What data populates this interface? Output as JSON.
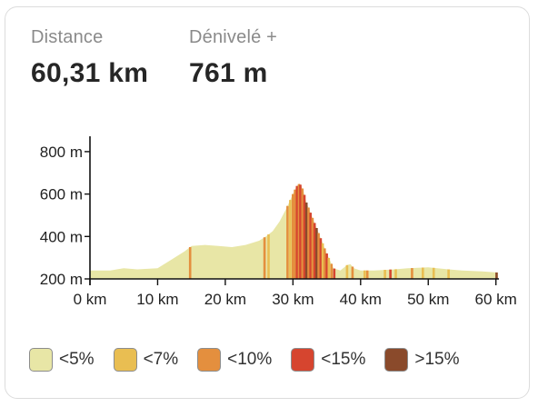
{
  "stats": {
    "distance": {
      "label": "Distance",
      "value": "60,31 km"
    },
    "elevation": {
      "label": "Dénivelé +",
      "value": "761 m"
    }
  },
  "chart_data": {
    "type": "area",
    "title": "",
    "xlabel": "",
    "ylabel": "",
    "xlim": [
      0,
      60.31
    ],
    "ylim": [
      160,
      860
    ],
    "y_ticks": [
      {
        "value": 800,
        "label": "800 m"
      },
      {
        "value": 600,
        "label": "600 m"
      },
      {
        "value": 400,
        "label": "400 m"
      },
      {
        "value": 200,
        "label": "200 m"
      }
    ],
    "x_ticks": [
      {
        "value": 0,
        "label": "0 km"
      },
      {
        "value": 10,
        "label": "10 km"
      },
      {
        "value": 20,
        "label": "20 km"
      },
      {
        "value": 30,
        "label": "30 km"
      },
      {
        "value": 40,
        "label": "40 km"
      },
      {
        "value": 50,
        "label": "50 km"
      },
      {
        "value": 60,
        "label": "60 km"
      }
    ],
    "profile": {
      "x": [
        0,
        3,
        5,
        7,
        10,
        12,
        14,
        15,
        17,
        19,
        21,
        23,
        25,
        26,
        27,
        28,
        29,
        30,
        30.5,
        31,
        31.5,
        32,
        33,
        34,
        35,
        36,
        37,
        38,
        38.5,
        39,
        40,
        42,
        45,
        47,
        50,
        53,
        55,
        58,
        60.31
      ],
      "y": [
        240,
        240,
        250,
        245,
        250,
        290,
        330,
        355,
        360,
        355,
        350,
        360,
        380,
        400,
        425,
        470,
        530,
        600,
        635,
        650,
        620,
        560,
        480,
        400,
        320,
        250,
        240,
        265,
        270,
        250,
        240,
        240,
        245,
        250,
        255,
        245,
        240,
        235,
        230
      ]
    },
    "gradient_segments": [
      {
        "x": 14.8,
        "category": "<10%"
      },
      {
        "x": 25.8,
        "category": "<10%"
      },
      {
        "x": 26.4,
        "category": "<7%"
      },
      {
        "x": 29.2,
        "category": "<10%"
      },
      {
        "x": 29.6,
        "category": "<7%"
      },
      {
        "x": 30.0,
        "category": "<10%"
      },
      {
        "x": 30.3,
        "category": "<10%"
      },
      {
        "x": 30.6,
        "category": "<15%"
      },
      {
        "x": 30.9,
        "category": "<10%"
      },
      {
        "x": 31.1,
        "category": "<15%"
      },
      {
        "x": 31.4,
        "category": "<10%"
      },
      {
        "x": 31.7,
        "category": "<15%"
      },
      {
        "x": 32.0,
        "category": ">15%"
      },
      {
        "x": 32.3,
        "category": "<10%"
      },
      {
        "x": 32.6,
        "category": "<15%"
      },
      {
        "x": 32.9,
        "category": "<10%"
      },
      {
        "x": 33.2,
        "category": "<15%"
      },
      {
        "x": 33.5,
        "category": ">15%"
      },
      {
        "x": 33.8,
        "category": "<10%"
      },
      {
        "x": 34.1,
        "category": "<15%"
      },
      {
        "x": 34.4,
        "category": "<7%"
      },
      {
        "x": 34.7,
        "category": "<10%"
      },
      {
        "x": 35.0,
        "category": "<15%"
      },
      {
        "x": 35.3,
        "category": "<7%"
      },
      {
        "x": 35.7,
        "category": "<10%"
      },
      {
        "x": 36.1,
        "category": "<15%"
      },
      {
        "x": 38.0,
        "category": "<7%"
      },
      {
        "x": 38.8,
        "category": "<10%"
      },
      {
        "x": 40.6,
        "category": "<7%"
      },
      {
        "x": 41.0,
        "category": "<10%"
      },
      {
        "x": 43.6,
        "category": "<7%"
      },
      {
        "x": 44.4,
        "category": "<15%"
      },
      {
        "x": 45.2,
        "category": "<7%"
      },
      {
        "x": 47.6,
        "category": "<10%"
      },
      {
        "x": 49.2,
        "category": "<7%"
      },
      {
        "x": 50.8,
        "category": "<7%"
      },
      {
        "x": 53.0,
        "category": "<7%"
      },
      {
        "x": 60.1,
        "category": ">15%"
      }
    ],
    "legend": [
      {
        "label": "<5%",
        "color": "#e8e6a6"
      },
      {
        "label": "<7%",
        "color": "#e9be52"
      },
      {
        "label": "<10%",
        "color": "#e48f3e"
      },
      {
        "label": "<15%",
        "color": "#d6452f"
      },
      {
        "label": ">15%",
        "color": "#8a4a2b"
      }
    ],
    "legend_position": "bottom",
    "grid": false
  }
}
